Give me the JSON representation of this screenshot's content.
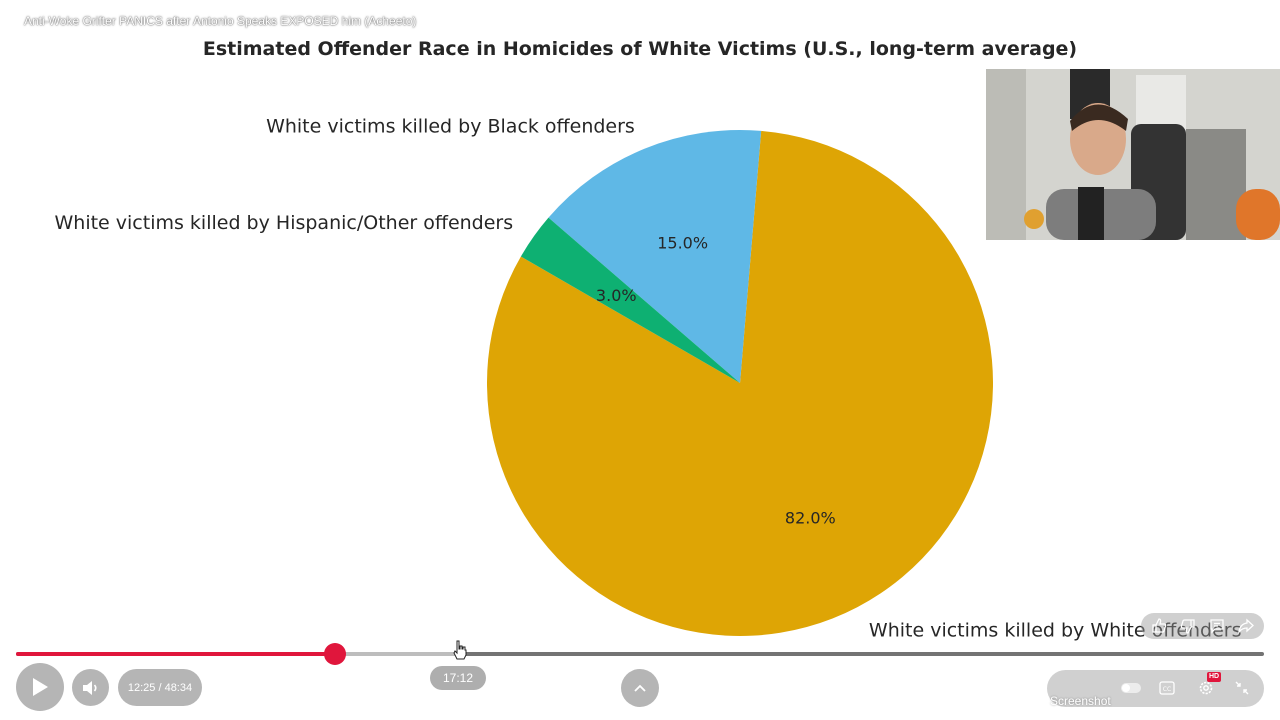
{
  "video": {
    "title": "Anti-Woke Grifter PANICS after Antonio Speaks EXPOSED him (Acheeto)"
  },
  "chart_data": {
    "type": "pie",
    "title": "Estimated Offender Race in Homicides of White Victims (U.S., long-term average)",
    "slices": [
      {
        "label": "White victims killed by White offenders",
        "value": 82.0,
        "pct_label": "82.0%",
        "color": "#DEA505"
      },
      {
        "label": "White victims killed by Black offenders",
        "value": 15.0,
        "pct_label": "15.0%",
        "color": "#5FB8E6"
      },
      {
        "label": "White victims killed by Hispanic/Other offenders",
        "value": 3.0,
        "pct_label": "3.0%",
        "color": "#0EB072"
      }
    ],
    "start_angle_deg": 150,
    "direction": "counterclockwise",
    "legend": "none"
  },
  "player": {
    "current_time": "12:25",
    "duration": "48:34",
    "time_display": "12:25 / 48:34",
    "hover_time": "17:12",
    "played_fraction": 0.2557,
    "buffered_fraction": 0.3541,
    "hovered_fraction": 0.3541,
    "screenshot_label": "Screenshot",
    "hd_badge": "HD",
    "accent_color": "#e0163c"
  }
}
